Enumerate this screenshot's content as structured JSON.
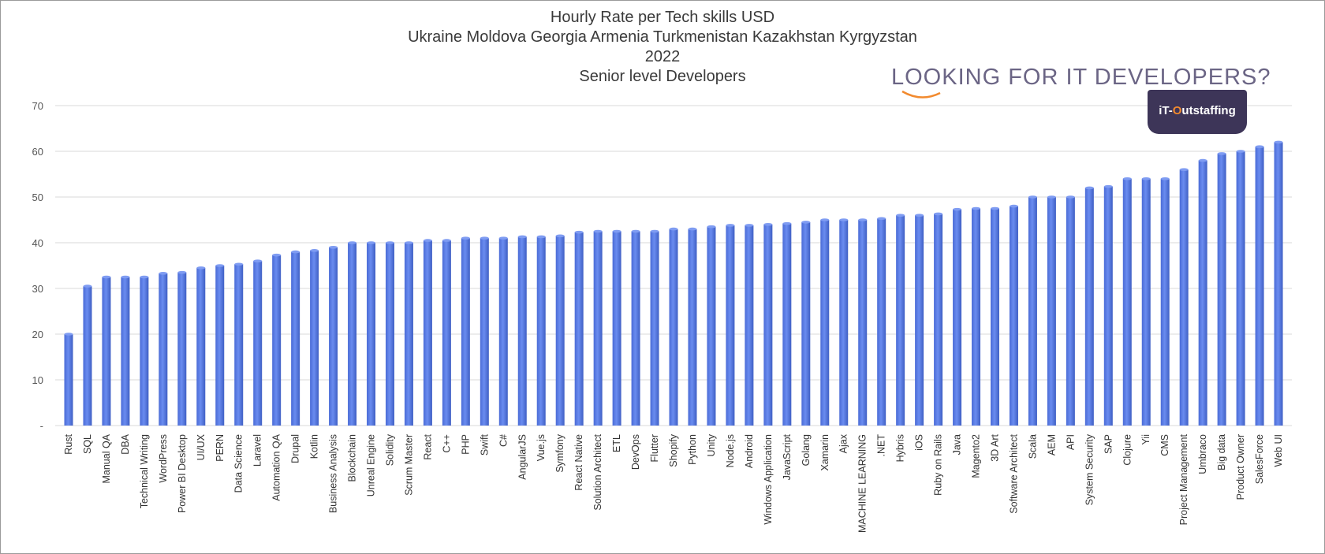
{
  "title_lines": [
    "Hourly Rate per Tech skills USD",
    "Ukraine Moldova Georgia Armenia Turkmenistan Kazakhstan Kyrgyzstan",
    "2022",
    "Senior level Developers"
  ],
  "logo": {
    "headline": "LOOKING FOR IT DEVELOPERS?",
    "brand_prefix": "iT-",
    "brand_accent": "O",
    "brand_rest": "utstaffing"
  },
  "colors": {
    "bar": "#5a7de4",
    "bar_dark": "#3f5fc4",
    "grid": "#d9d9d9",
    "logo_badge": "#3d3558",
    "logo_accent": "#f28a2e"
  },
  "chart_data": {
    "type": "bar",
    "title": "Hourly Rate per Tech skills USD",
    "xlabel": "",
    "ylabel": "",
    "ylim": [
      0,
      70
    ],
    "yticks": [
      0,
      10,
      20,
      30,
      40,
      50,
      60,
      70
    ],
    "ytick_labels": [
      "-",
      "10",
      "20",
      "30",
      "40",
      "50",
      "60",
      "70"
    ],
    "grid": true,
    "categories": [
      "Rust",
      "SQL",
      "Manual QA",
      "DBA",
      "Technical Writing",
      "WordPress",
      "Power BI Desktop",
      "UI/UX",
      "PERN",
      "Data Science",
      "Laravel",
      "Automation QA",
      "Drupal",
      "Kotlin",
      "Business Analysis",
      "Blockchain",
      "Unreal Engine",
      "Solidity",
      "Scrum Master",
      "React",
      "C++",
      "PHP",
      "Swift",
      "C#",
      "AngularJS",
      "Vue.js",
      "Symfony",
      "React Native",
      "Solution Architect",
      "ETL",
      "DevOps",
      "Flutter",
      "Shopify",
      "Python",
      "Unity",
      "Node.js",
      "Android",
      "Windows Application",
      "JavaScript",
      "Golang",
      "Xamarin",
      "Ajax",
      "MACHINE LEARNING",
      ".NET",
      "Hybris",
      "iOS",
      "Ruby on Rails",
      "Java",
      "Magento2",
      "3D Art",
      "Software Architect",
      "Scala",
      "AEM",
      "API",
      "System Security",
      "SAP",
      "Clojure",
      "Yii",
      "CMS",
      "Project Management",
      "Umbraco",
      "Big data",
      "Product Owner",
      "SalesForce",
      "Web UI"
    ],
    "values": [
      20,
      30.5,
      32.5,
      32.5,
      32.5,
      33.3,
      33.5,
      34.5,
      35,
      35.3,
      36,
      37.3,
      38,
      38.3,
      39,
      40,
      40,
      40,
      40,
      40.5,
      40.5,
      41,
      41,
      41,
      41.3,
      41.3,
      41.5,
      42.3,
      42.5,
      42.5,
      42.5,
      42.5,
      43,
      43,
      43.5,
      43.8,
      43.8,
      44,
      44.2,
      44.5,
      45,
      45,
      45,
      45.3,
      46,
      46,
      46.3,
      47.3,
      47.5,
      47.5,
      48,
      50,
      50,
      50,
      52,
      52.3,
      54,
      54,
      54,
      56,
      58,
      59.5,
      60,
      61,
      62
    ]
  }
}
